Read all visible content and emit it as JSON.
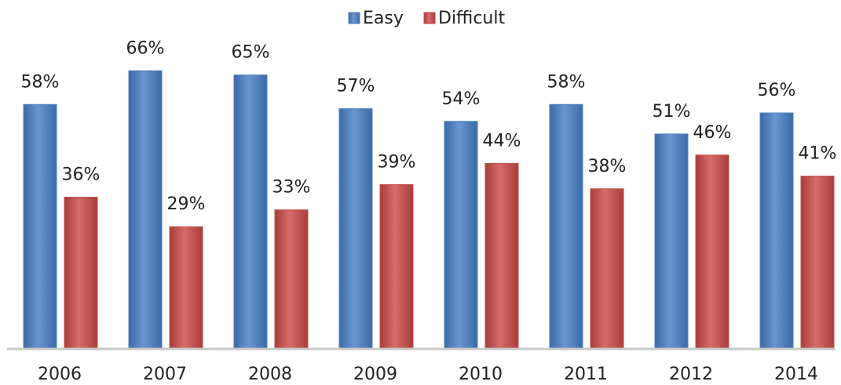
{
  "chart_data": {
    "type": "bar",
    "categories": [
      "2006",
      "2007",
      "2008",
      "2009",
      "2010",
      "2011",
      "2012",
      "2014"
    ],
    "series": [
      {
        "name": "Easy",
        "color": "#4f81bd",
        "values": [
          58,
          66,
          65,
          57,
          54,
          58,
          51,
          56
        ],
        "value_labels": [
          "58%",
          "66%",
          "65%",
          "57%",
          "54%",
          "58%",
          "51%",
          "56%"
        ]
      },
      {
        "name": "Difficult",
        "color": "#c0504d",
        "values": [
          36,
          29,
          33,
          39,
          44,
          38,
          46,
          41
        ],
        "value_labels": [
          "36%",
          "29%",
          "33%",
          "39%",
          "44%",
          "38%",
          "46%",
          "41%"
        ]
      }
    ],
    "ylim": [
      0,
      80
    ],
    "legend": "top"
  }
}
